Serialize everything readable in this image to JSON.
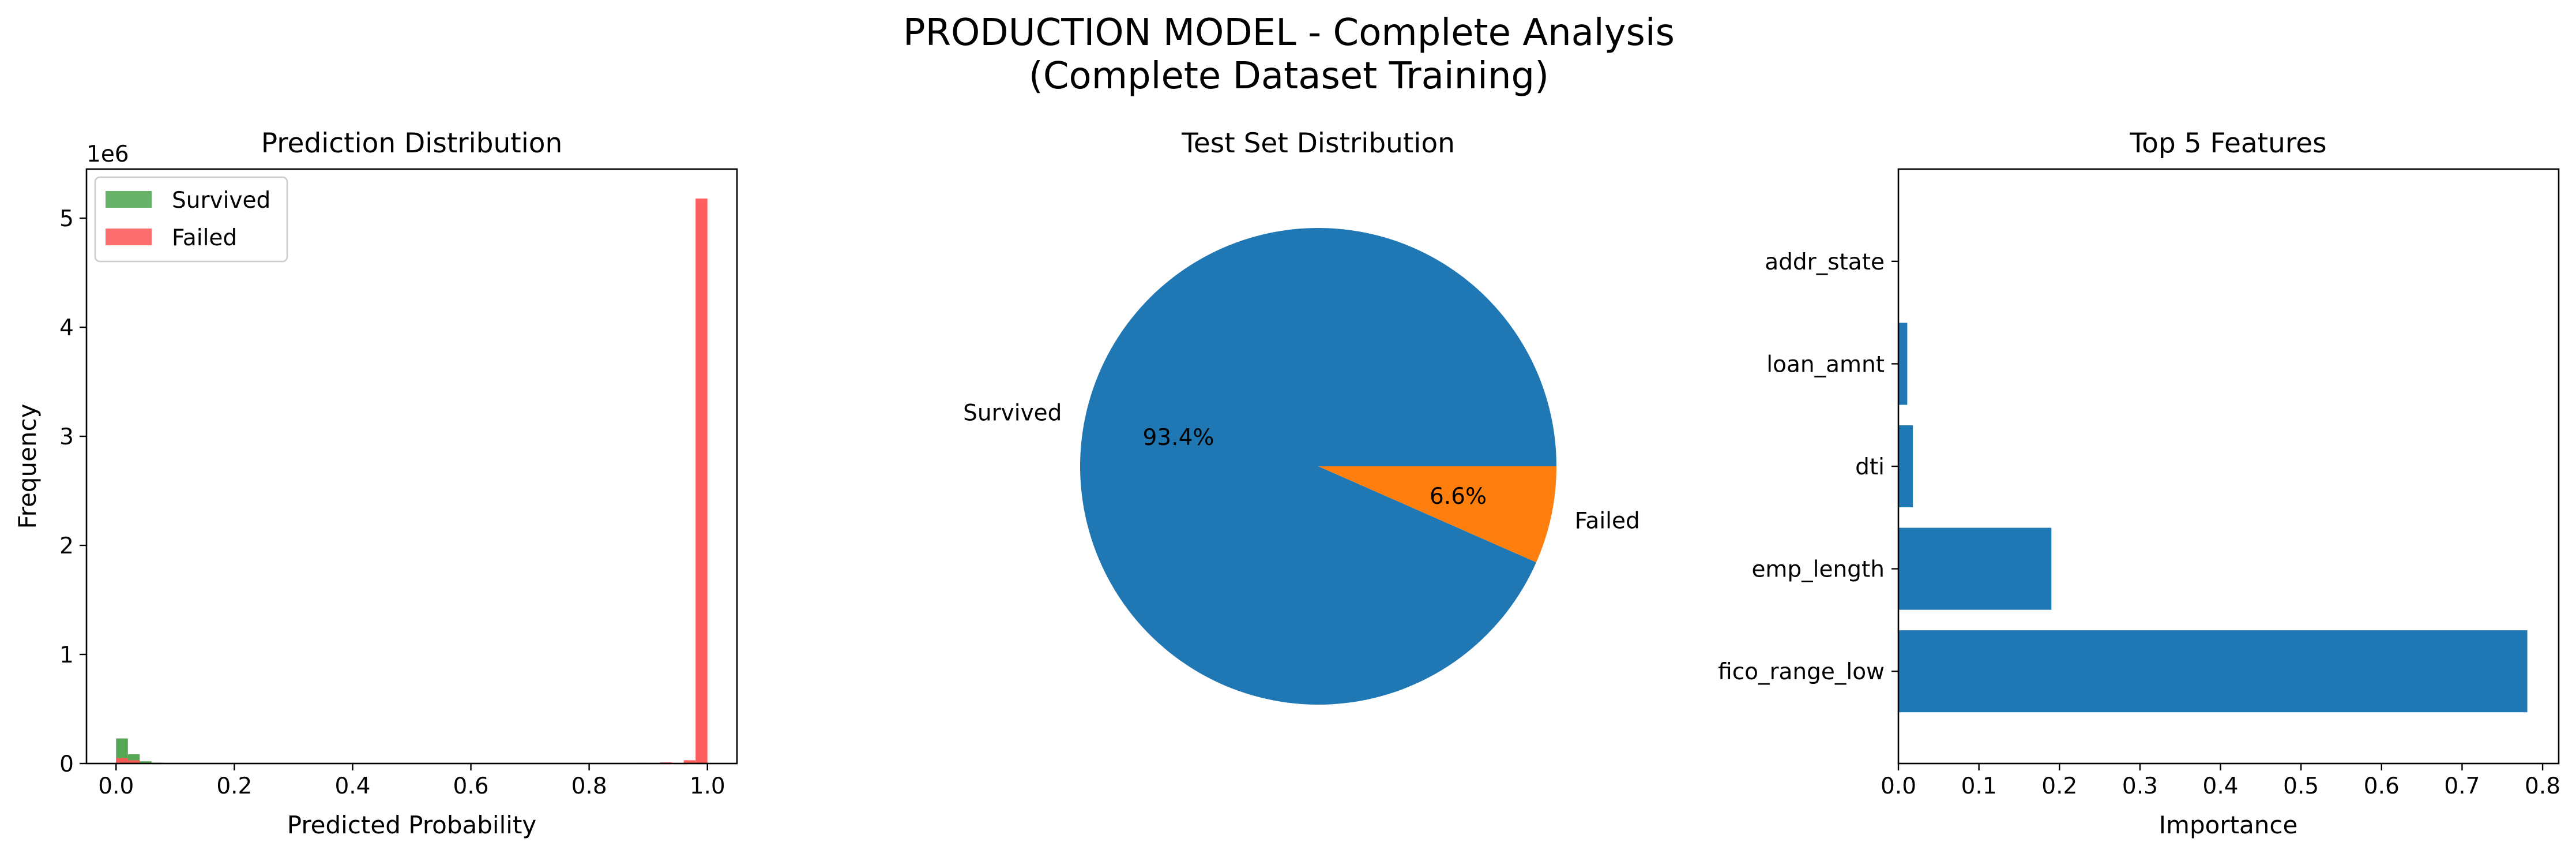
{
  "figure": {
    "title_line1": "PRODUCTION MODEL - Complete Analysis",
    "title_line2": "(Complete Dataset Training)"
  },
  "chart_data": [
    {
      "type": "bar",
      "subtype": "histogram",
      "title": "Prediction Distribution",
      "xlabel": "Predicted Probability",
      "ylabel": "Frequency",
      "y_scale_label": "1e6",
      "xlim": [
        -0.05,
        1.05
      ],
      "ylim": [
        0,
        5.45
      ],
      "x_ticks": [
        "0.0",
        "0.2",
        "0.4",
        "0.6",
        "0.8",
        "1.0"
      ],
      "y_ticks": [
        "0",
        "1",
        "2",
        "3",
        "4",
        "5"
      ],
      "legend_position": "top-left",
      "bin_width": 0.02,
      "series": [
        {
          "name": "Survived",
          "color": "#4da34d",
          "bins": [
            {
              "x": 0.01,
              "value": 0.23
            },
            {
              "x": 0.03,
              "value": 0.085
            },
            {
              "x": 0.05,
              "value": 0.02
            },
            {
              "x": 0.07,
              "value": 0.008
            },
            {
              "x": 0.11,
              "value": 0.005
            },
            {
              "x": 0.15,
              "value": 0.004
            },
            {
              "x": 0.21,
              "value": 0.003
            },
            {
              "x": 0.97,
              "value": 0.005
            },
            {
              "x": 0.99,
              "value": 0.01
            }
          ]
        },
        {
          "name": "Failed",
          "color": "#ff5555",
          "bins": [
            {
              "x": 0.01,
              "value": 0.05
            },
            {
              "x": 0.03,
              "value": 0.03
            },
            {
              "x": 0.13,
              "value": 0.005
            },
            {
              "x": 0.23,
              "value": 0.004
            },
            {
              "x": 0.89,
              "value": 0.006
            },
            {
              "x": 0.93,
              "value": 0.01
            },
            {
              "x": 0.97,
              "value": 0.03
            },
            {
              "x": 0.99,
              "value": 5.18
            }
          ]
        }
      ]
    },
    {
      "type": "pie",
      "title": "Test Set Distribution",
      "slices": [
        {
          "label": "Survived",
          "value": 93.4,
          "pct_label": "93.4%",
          "color": "#1f77b4"
        },
        {
          "label": "Failed",
          "value": 6.6,
          "pct_label": "6.6%",
          "color": "#ff7f0e"
        }
      ]
    },
    {
      "type": "bar",
      "orientation": "horizontal",
      "title": "Top 5 Features",
      "xlabel": "Importance",
      "xlim": [
        0,
        0.82
      ],
      "x_ticks": [
        0.0,
        0.1,
        0.2,
        0.3,
        0.4,
        0.5,
        0.6,
        0.7,
        0.8
      ],
      "x_tick_labels": [
        "0.0",
        "0.1",
        "0.2",
        "0.3",
        "0.4",
        "0.5",
        "0.6",
        "0.7",
        "0.8"
      ],
      "color": "#1f77b4",
      "categories": [
        "fico_range_low",
        "emp_length",
        "dti",
        "loan_amnt",
        "addr_state"
      ],
      "values": [
        0.781,
        0.19,
        0.018,
        0.011,
        0.0003
      ]
    }
  ]
}
